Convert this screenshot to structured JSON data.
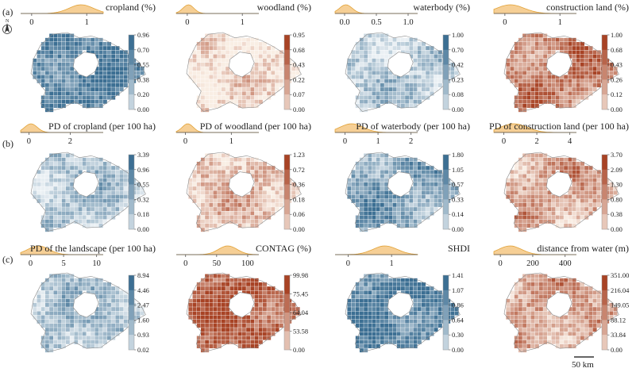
{
  "row_labels": [
    "(a)",
    "(b)",
    "(c)"
  ],
  "scale_bar_label": "50 km",
  "north_label": "N",
  "colors": {
    "blue": "#3c6f93",
    "blue_light": "#eef3f6",
    "red": "#a84325",
    "red_light": "#fbf1e8",
    "density_fill": "#f6cf95",
    "density_line": "#e2a339",
    "axis": "#9aa6b2"
  },
  "panels": [
    {
      "id": "cropland",
      "row": 0,
      "col": 0,
      "title": "cropland (%)",
      "axis_ticks": [
        "0",
        "1"
      ],
      "tick_values": [
        0,
        1
      ],
      "axis_range": [
        -0.2,
        1.3
      ],
      "density_peak": 0.9,
      "density_width": 0.22,
      "colormap": "blue",
      "colorbar_labels": [
        "0.96",
        "0.70",
        "0.55",
        "0.38",
        "0.20",
        "0.00"
      ],
      "bias": 0.35
    },
    {
      "id": "woodland",
      "row": 0,
      "col": 1,
      "title": "woodland (%)",
      "axis_ticks": [
        "0",
        "1"
      ],
      "tick_values": [
        0,
        1
      ],
      "axis_range": [
        -0.2,
        1.3
      ],
      "density_peak": 0.02,
      "density_width": 0.1,
      "colormap": "red",
      "colorbar_labels": [
        "0.95",
        "0.68",
        "0.43",
        "0.22",
        "0.07",
        "0.00"
      ],
      "bias": -0.4
    },
    {
      "id": "waterbody",
      "row": 0,
      "col": 2,
      "title": "waterbody (%)",
      "axis_ticks": [
        "0.0",
        "0.5",
        "1.0"
      ],
      "tick_values": [
        0,
        0.5,
        1
      ],
      "axis_range": [
        -0.15,
        1.15
      ],
      "density_peak": 0.02,
      "density_width": 0.1,
      "colormap": "blue",
      "colorbar_labels": [
        "1.00",
        "0.70",
        "0.42",
        "0.23",
        "0.08",
        "0.00"
      ],
      "bias": -0.2
    },
    {
      "id": "construction",
      "row": 0,
      "col": 3,
      "title": "construction land (%)",
      "axis_ticks": [
        "0",
        "1"
      ],
      "tick_values": [
        0,
        1
      ],
      "axis_range": [
        -0.2,
        1.3
      ],
      "density_peak": 0.1,
      "density_width": 0.25,
      "colormap": "red",
      "colorbar_labels": [
        "1.00",
        "0.68",
        "0.43",
        "0.26",
        "0.12",
        "0.00"
      ],
      "bias": 0.15
    },
    {
      "id": "pd_cropland",
      "row": 1,
      "col": 0,
      "title": "PD of cropland (per 100 ha)",
      "axis_ticks": [
        "0",
        "2"
      ],
      "tick_values": [
        0,
        2
      ],
      "axis_range": [
        -0.4,
        3.6
      ],
      "density_peak": 0.1,
      "density_width": 0.3,
      "colormap": "blue",
      "colorbar_labels": [
        "3.39",
        "0.96",
        "0.55",
        "0.32",
        "0.18",
        "0.00"
      ],
      "bias": -0.15
    },
    {
      "id": "pd_woodland",
      "row": 1,
      "col": 1,
      "title": "PD of woodland (per 100 ha)",
      "axis_ticks": [
        "0",
        "1"
      ],
      "tick_values": [
        0,
        1
      ],
      "axis_range": [
        -0.2,
        1.6
      ],
      "density_peak": 0.05,
      "density_width": 0.12,
      "colormap": "red",
      "colorbar_labels": [
        "1.23",
        "0.72",
        "0.36",
        "0.18",
        "0.06",
        "0.00"
      ],
      "bias": -0.2
    },
    {
      "id": "pd_waterbody",
      "row": 1,
      "col": 2,
      "title": "PD of waterbody (per 100 ha)",
      "axis_ticks": [
        "0",
        "1",
        "2"
      ],
      "tick_values": [
        0,
        1,
        2
      ],
      "axis_range": [
        -0.3,
        2.2
      ],
      "density_peak": 0.2,
      "density_width": 0.35,
      "colormap": "blue",
      "colorbar_labels": [
        "1.80",
        "1.05",
        "0.57",
        "0.33",
        "0.14",
        "0.00"
      ],
      "bias": 0.1
    },
    {
      "id": "pd_construction",
      "row": 1,
      "col": 3,
      "title": "PD of construction land (per 100 ha)",
      "axis_ticks": [
        "0",
        "2",
        "4"
      ],
      "tick_values": [
        0,
        2,
        4
      ],
      "axis_range": [
        -0.6,
        4.4
      ],
      "density_peak": 0.6,
      "density_width": 0.8,
      "colormap": "red",
      "colorbar_labels": [
        "3.70",
        "2.09",
        "1.30",
        "0.80",
        "0.38",
        "0.00"
      ],
      "bias": -0.05
    },
    {
      "id": "pd_landscape",
      "row": 2,
      "col": 0,
      "title": "PD of the landscape (per 100 ha)",
      "axis_ticks": [
        "0",
        "5",
        "10"
      ],
      "tick_values": [
        0,
        5,
        10
      ],
      "axis_range": [
        -1.5,
        11
      ],
      "density_peak": 1.2,
      "density_width": 1.6,
      "colormap": "blue",
      "colorbar_labels": [
        "8.94",
        "4.46",
        "2.47",
        "1.60",
        "0.93",
        "0.02"
      ],
      "bias": -0.1
    },
    {
      "id": "contag",
      "row": 2,
      "col": 1,
      "title": "CONTAG (%)",
      "axis_ticks": [
        "0",
        "50",
        "100"
      ],
      "tick_values": [
        0,
        50,
        100
      ],
      "axis_range": [
        -15,
        118
      ],
      "density_peak": 68,
      "density_width": 15,
      "colormap": "red",
      "colorbar_labels": [
        "99.98",
        "75.45",
        "64.04",
        "53.58",
        "0.00"
      ],
      "bias": 0.35
    },
    {
      "id": "shdi",
      "row": 2,
      "col": 2,
      "title": "SHDI",
      "axis_ticks": [
        "0",
        "1"
      ],
      "tick_values": [
        0,
        1
      ],
      "axis_range": [
        -0.3,
        1.6
      ],
      "density_peak": 0.85,
      "density_width": 0.28,
      "colormap": "blue",
      "colorbar_labels": [
        "1.41",
        "1.07",
        "0.86",
        "0.64",
        "0.30",
        "0.00"
      ],
      "bias": 0.35
    },
    {
      "id": "distance_water",
      "row": 2,
      "col": 3,
      "title": "distance from water (m)",
      "axis_ticks": [
        "0",
        "200",
        "400"
      ],
      "tick_values": [
        0,
        200,
        400
      ],
      "axis_range": [
        -40,
        470
      ],
      "density_peak": 60,
      "density_width": 70,
      "colormap": "red",
      "colorbar_labels": [
        "351.00",
        "216.04",
        "149.05",
        "88.12",
        "33.84",
        "0.00"
      ],
      "bias": -0.05
    }
  ]
}
